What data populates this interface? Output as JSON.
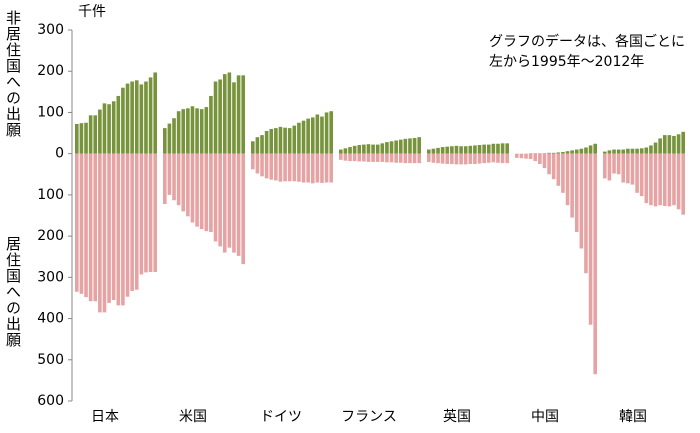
{
  "chart_data": {
    "type": "bar",
    "unit_label": "千件",
    "annotation": [
      "グラフのデータは、各国ごとに",
      "左から1995年～2012年"
    ],
    "categories": [
      "日本",
      "米国",
      "ドイツ",
      "フランス",
      "英国",
      "中国",
      "韓国"
    ],
    "series": [
      {
        "name": "非居住国への出願",
        "color": "#77933c",
        "values": [
          [
            72,
            74,
            75,
            93,
            93,
            107,
            122,
            120,
            127,
            140,
            160,
            170,
            175,
            178,
            168,
            175,
            185,
            197
          ],
          [
            62,
            73,
            86,
            103,
            108,
            110,
            115,
            110,
            108,
            113,
            140,
            175,
            180,
            193,
            197,
            173,
            190,
            190
          ],
          [
            30,
            40,
            45,
            55,
            60,
            62,
            65,
            63,
            62,
            68,
            75,
            80,
            85,
            88,
            95,
            90,
            100,
            103
          ],
          [
            10,
            13,
            16,
            19,
            21,
            22,
            23,
            22,
            22,
            25,
            28,
            30,
            32,
            34,
            36,
            37,
            38,
            40
          ],
          [
            10,
            12,
            14,
            16,
            17,
            18,
            19,
            18,
            18,
            19,
            20,
            21,
            22,
            22,
            24,
            24,
            25,
            25
          ],
          [
            0,
            0,
            0,
            1,
            1,
            1,
            1,
            2,
            2,
            3,
            4,
            6,
            8,
            10,
            12,
            15,
            20,
            24
          ],
          [
            5,
            8,
            10,
            10,
            10,
            12,
            12,
            12,
            13,
            15,
            20,
            27,
            37,
            45,
            45,
            43,
            47,
            53
          ]
        ]
      },
      {
        "name": "居住国への出願",
        "color": "#e6a3a3",
        "values": [
          [
            -335,
            -340,
            -348,
            -358,
            -358,
            -385,
            -385,
            -362,
            -355,
            -368,
            -368,
            -347,
            -333,
            -330,
            -293,
            -288,
            -287,
            -287
          ],
          [
            -122,
            -100,
            -113,
            -125,
            -140,
            -152,
            -167,
            -177,
            -183,
            -188,
            -190,
            -213,
            -225,
            -240,
            -228,
            -240,
            -248,
            -268
          ],
          [
            -38,
            -48,
            -55,
            -60,
            -63,
            -65,
            -68,
            -67,
            -67,
            -67,
            -68,
            -70,
            -70,
            -72,
            -70,
            -71,
            -70,
            -70
          ],
          [
            -15,
            -17,
            -18,
            -18,
            -19,
            -19,
            -20,
            -20,
            -20,
            -20,
            -21,
            -21,
            -22,
            -22,
            -23,
            -23,
            -23,
            -23
          ],
          [
            -20,
            -22,
            -23,
            -24,
            -25,
            -25,
            -26,
            -26,
            -26,
            -25,
            -25,
            -24,
            -23,
            -22,
            -21,
            -22,
            -23,
            -23
          ],
          [
            -10,
            -11,
            -12,
            -13,
            -18,
            -25,
            -35,
            -50,
            -62,
            -78,
            -95,
            -125,
            -155,
            -190,
            -230,
            -290,
            -415,
            -535
          ],
          [
            -60,
            -65,
            -48,
            -50,
            -70,
            -72,
            -75,
            -95,
            -103,
            -120,
            -125,
            -128,
            -125,
            -127,
            -128,
            -125,
            -135,
            -148
          ]
        ]
      }
    ],
    "ylim": [
      -600,
      300
    ],
    "yticks": [
      300,
      200,
      100,
      0,
      {
        "value": -100,
        "label": "100"
      },
      {
        "value": -200,
        "label": "200"
      },
      {
        "value": -300,
        "label": "300"
      },
      {
        "value": -400,
        "label": "400"
      },
      {
        "value": -500,
        "label": "500"
      },
      {
        "value": -600,
        "label": "600"
      }
    ]
  }
}
